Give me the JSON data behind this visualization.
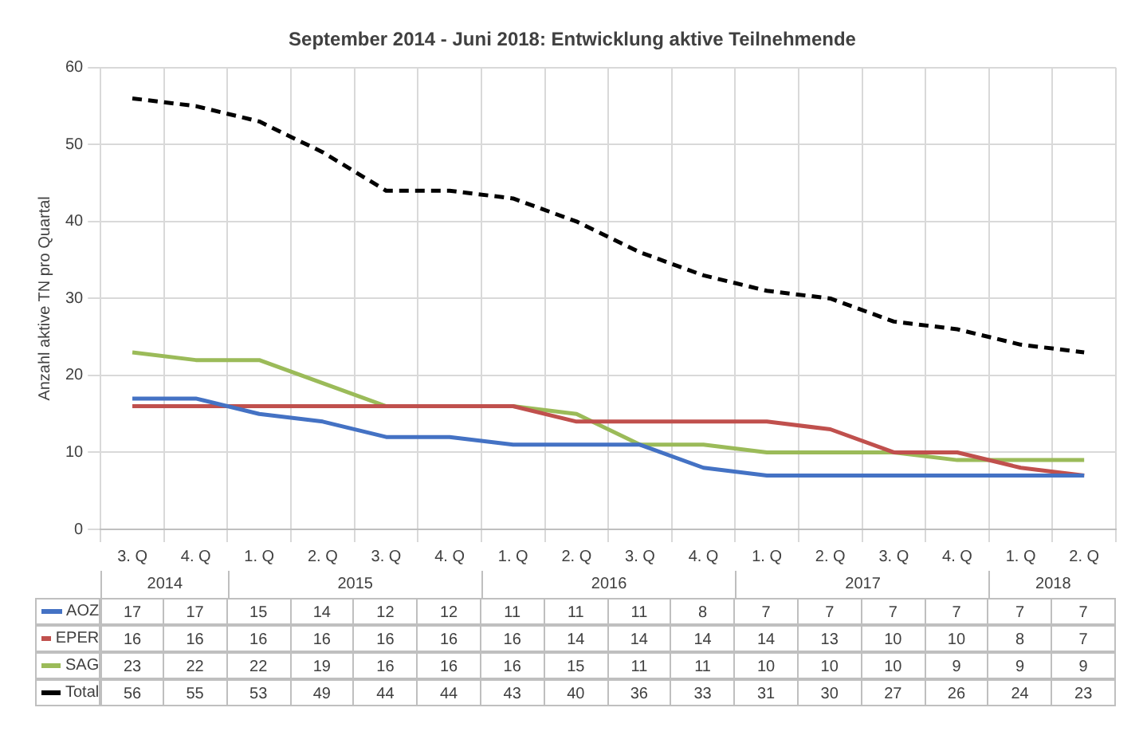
{
  "chart_data": {
    "type": "line",
    "title": "September 2014 - Juni 2018: Entwicklung aktive Teilnehmende",
    "ylabel": "Anzahl aktive TN pro Quartal",
    "categories": [
      "3. Q",
      "4. Q",
      "1. Q",
      "2. Q",
      "3. Q",
      "4. Q",
      "1. Q",
      "2. Q",
      "3. Q",
      "4. Q",
      "1. Q",
      "2. Q",
      "3. Q",
      "4. Q",
      "1. Q",
      "2. Q"
    ],
    "annotations": [
      "2014",
      "2015",
      "2016",
      "2017",
      "2018"
    ],
    "series": [
      {
        "name": "AOZ",
        "color": "#4472c4",
        "values": [
          17,
          17,
          15,
          14,
          12,
          12,
          11,
          11,
          11,
          8,
          7,
          7,
          7,
          7,
          7,
          7
        ]
      },
      {
        "name": "EPER",
        "color": "#c0504d",
        "values": [
          16,
          16,
          16,
          16,
          16,
          16,
          16,
          14,
          14,
          14,
          14,
          13,
          10,
          10,
          8,
          7
        ]
      },
      {
        "name": "SAG",
        "color": "#9bbb59",
        "values": [
          23,
          22,
          22,
          19,
          16,
          16,
          16,
          15,
          11,
          11,
          10,
          10,
          10,
          9,
          9,
          9
        ]
      },
      {
        "name": "Total",
        "color": "#000000",
        "line_style": "dashed",
        "values": [
          56,
          55,
          53,
          49,
          44,
          44,
          43,
          40,
          36,
          33,
          31,
          30,
          27,
          26,
          24,
          23
        ]
      }
    ],
    "ylim": [
      0,
      60
    ],
    "yticks": [
      0,
      10,
      20,
      30,
      40,
      50,
      60
    ],
    "grid": true,
    "legend": "bottom",
    "data_labels": true,
    "marker": "none"
  }
}
